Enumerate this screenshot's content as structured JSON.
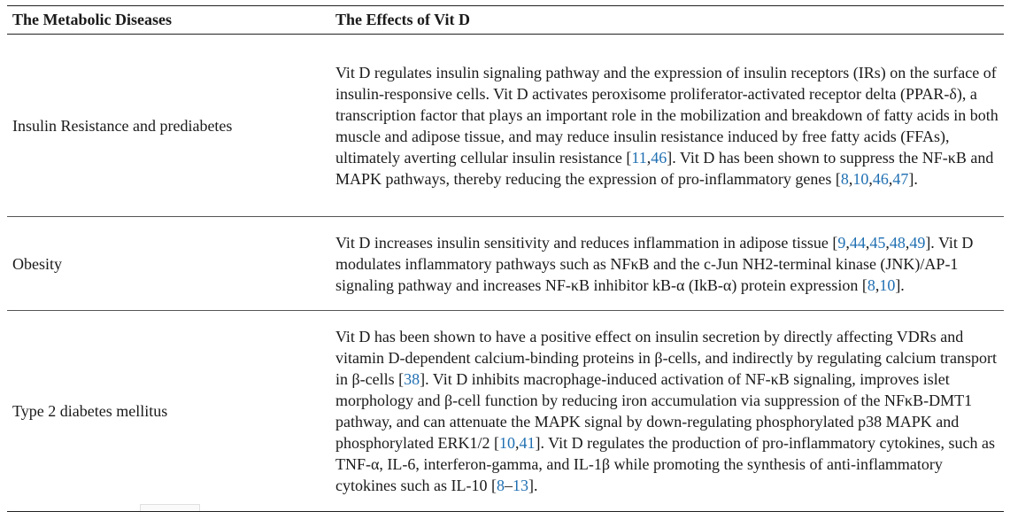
{
  "table": {
    "headers": {
      "disease": "The Metabolic Diseases",
      "effects": "The Effects of Vit D"
    },
    "rows": [
      {
        "disease": "Insulin Resistance and prediabetes",
        "effect": {
          "t1": "Vit D regulates insulin signaling pathway and the expression of insulin receptors (IRs) on the surface of insulin-responsive cells. Vit D activates peroxisome proliferator-activated receptor delta (PPAR-δ), a transcription factor that plays an important role in the mobilization and breakdown of fatty acids in both muscle and adipose tissue, and may reduce insulin resistance induced by free fatty acids (FFAs), ultimately averting cellular insulin resistance [",
          "r1": "11",
          "s1": ",",
          "r2": "46",
          "t2": "]. Vit D has been shown to suppress the NF-κB and MAPK pathways, thereby reducing the expression of pro-inflammatory genes [",
          "r3": "8",
          "s2": ",",
          "r4": "10",
          "s3": ",",
          "r5": "46",
          "s4": ",",
          "r6": "47",
          "t3": "]."
        }
      },
      {
        "disease": "Obesity",
        "effect": {
          "t1": "Vit D increases insulin sensitivity and reduces inflammation in adipose tissue [",
          "r1": "9",
          "s1": ",",
          "r2": "44",
          "s2": ",",
          "r3": "45",
          "s3": ",",
          "r4": "48",
          "s4": ",",
          "r5": "49",
          "t2": "]. Vit D modulates inflammatory pathways such as NFκB and the c-Jun NH2-terminal kinase (JNK)/AP-1 signaling pathway and increases NF-κB inhibitor kB-α (IkB-α) protein expression [",
          "r6": "8",
          "s5": ",",
          "r7": "10",
          "t3": "]."
        }
      },
      {
        "disease": "Type 2 diabetes mellitus",
        "effect": {
          "t1": "Vit D has been shown to have a positive effect on insulin secretion by directly affecting VDRs and vitamin D-dependent calcium-binding proteins in β-cells, and indirectly by regulating calcium transport in β-cells [",
          "r1": "38",
          "t2": "]. Vit D inhibits macrophage-induced activation of NF-κB signaling, improves islet morphology and β-cell function by reducing iron accumulation via suppression of the NFκB-DMT1 pathway, and can attenuate the MAPK signal by down-regulating phosphorylated p38 MAPK and phosphorylated ERK1/2 [",
          "r2": "10",
          "s1": ",",
          "r3": "41",
          "t3": "]. Vit D regulates the production of pro-inflammatory cytokines, such as TNF-α, IL-6, interferon-gamma, and IL-1β while promoting the synthesis of anti-inflammatory cytokines such as IL-10 [",
          "r4": "8",
          "s2": "–",
          "r5": "13",
          "t4": "]."
        }
      }
    ]
  }
}
